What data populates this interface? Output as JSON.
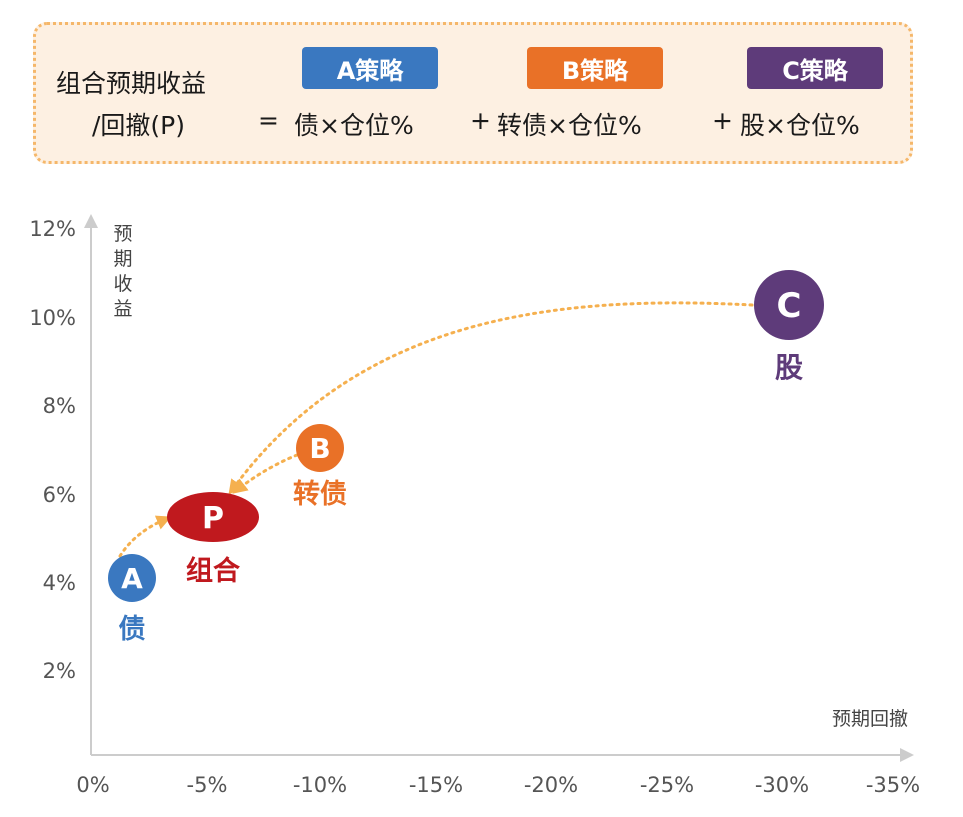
{
  "formula": {
    "lhs_line1": "组合预期收益",
    "lhs_line2": "/回撤(P)",
    "equals": "=",
    "term_a": "债×仓位%",
    "plus1": "+",
    "term_b": "转债×仓位%",
    "plus2": "+",
    "term_c": "股×仓位%",
    "tags": [
      {
        "label": "A策略",
        "color": "#3a78c0"
      },
      {
        "label": "B策略",
        "color": "#e97127"
      },
      {
        "label": "C策略",
        "color": "#5e3b7a"
      }
    ]
  },
  "axes": {
    "y_title_chars": [
      "预",
      "期",
      "收",
      "益"
    ],
    "x_title": "预期回撤",
    "y_ticks": [
      "12%",
      "10%",
      "8%",
      "6%",
      "4%",
      "2%"
    ],
    "x_ticks": [
      "0%",
      "-5%",
      "-10%",
      "-15%",
      "-20%",
      "-25%",
      "-30%",
      "-35%"
    ]
  },
  "nodes": {
    "a": {
      "letter": "A",
      "label": "债",
      "color": "#3a78c0"
    },
    "p": {
      "letter": "P",
      "label": "组合",
      "color": "#c0191e"
    },
    "b": {
      "letter": "B",
      "label": "转债",
      "color": "#e97127"
    },
    "c": {
      "letter": "C",
      "label": "股",
      "color": "#5e3b7a"
    }
  },
  "arrow_color": "#f5b04f"
}
